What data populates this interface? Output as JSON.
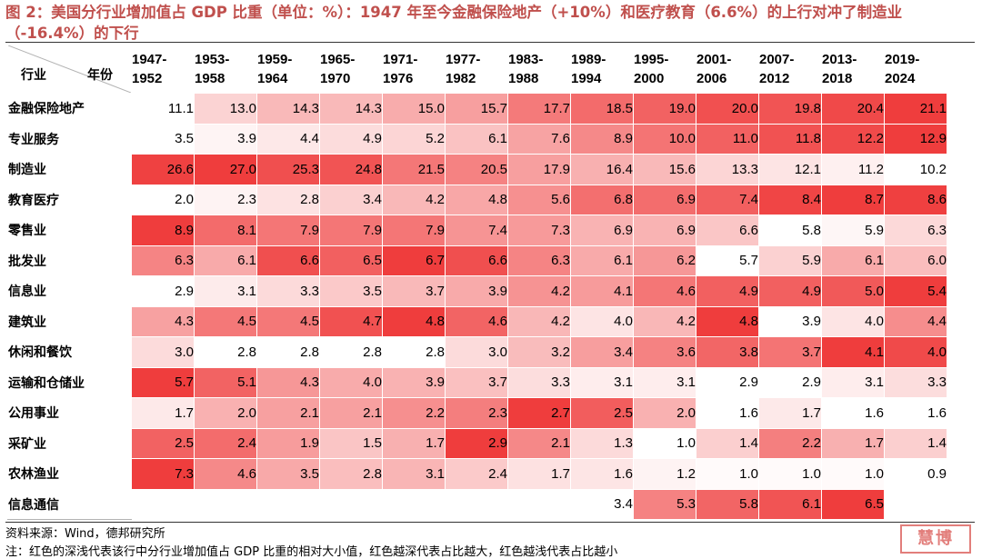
{
  "title": "图 2：美国分行业增加值占 GDP 比重（单位：%）：1947 年至今金融保险地产（+10%）和医疗教育（6.6%）的上行对冲了制造业（-16.4%）的下行",
  "corner": {
    "row_header": "行业",
    "col_header": "年份"
  },
  "colors": {
    "title": "#c0504d",
    "heat_max": "#ef3d3d",
    "heat_min": "#ffffff"
  },
  "chart_data": {
    "type": "heatmap",
    "title": "美国分行业增加值占 GDP 比重（单位：%）",
    "periods": [
      "1947-1952",
      "1953-1958",
      "1959-1964",
      "1965-1970",
      "1971-1976",
      "1977-1982",
      "1983-1988",
      "1989-1994",
      "1995-2000",
      "2001-2006",
      "2007-2012",
      "2013-2018",
      "2019-2024"
    ],
    "scale": "row-relative; deeper red = larger share",
    "rows": [
      {
        "name": "金融保险地产",
        "values": [
          11.1,
          13.0,
          14.3,
          14.3,
          15.0,
          15.7,
          17.7,
          18.5,
          19.0,
          20.0,
          19.8,
          20.4,
          21.1
        ]
      },
      {
        "name": "专业服务",
        "values": [
          3.5,
          3.9,
          4.4,
          4.9,
          5.2,
          6.1,
          7.6,
          8.9,
          10.0,
          11.0,
          11.8,
          12.2,
          12.9
        ]
      },
      {
        "name": "制造业",
        "values": [
          26.6,
          27.0,
          25.3,
          24.8,
          21.5,
          20.5,
          17.9,
          16.4,
          15.6,
          13.3,
          12.1,
          11.2,
          10.2
        ]
      },
      {
        "name": "教育医疗",
        "values": [
          2.0,
          2.3,
          2.8,
          3.4,
          4.2,
          4.8,
          5.6,
          6.8,
          6.9,
          7.4,
          8.4,
          8.7,
          8.6
        ]
      },
      {
        "name": "零售业",
        "values": [
          8.9,
          8.1,
          7.9,
          7.9,
          7.9,
          7.4,
          7.3,
          6.9,
          6.9,
          6.6,
          5.8,
          5.9,
          6.3
        ]
      },
      {
        "name": "批发业",
        "values": [
          6.3,
          6.1,
          6.6,
          6.5,
          6.7,
          6.6,
          6.3,
          6.1,
          6.2,
          5.7,
          5.9,
          6.1,
          6.0
        ]
      },
      {
        "name": "信息业",
        "values": [
          2.9,
          3.1,
          3.3,
          3.5,
          3.7,
          3.9,
          4.2,
          4.1,
          4.6,
          4.9,
          4.9,
          5.0,
          5.4
        ]
      },
      {
        "name": "建筑业",
        "values": [
          4.3,
          4.5,
          4.5,
          4.7,
          4.8,
          4.6,
          4.2,
          4.0,
          4.2,
          4.8,
          3.9,
          4.0,
          4.4
        ]
      },
      {
        "name": "休闲和餐饮",
        "values": [
          3.0,
          2.8,
          2.8,
          2.8,
          2.8,
          3.0,
          3.2,
          3.4,
          3.6,
          3.8,
          3.7,
          4.1,
          4.0
        ]
      },
      {
        "name": "运输和仓储业",
        "values": [
          5.7,
          5.1,
          4.3,
          4.0,
          3.9,
          3.7,
          3.3,
          3.1,
          3.1,
          2.9,
          2.9,
          3.1,
          3.3
        ]
      },
      {
        "name": "公用事业",
        "values": [
          1.7,
          2.0,
          2.1,
          2.1,
          2.2,
          2.3,
          2.7,
          2.5,
          2.0,
          1.6,
          1.7,
          1.6,
          1.6
        ]
      },
      {
        "name": "采矿业",
        "values": [
          2.5,
          2.4,
          1.9,
          1.5,
          1.7,
          2.9,
          2.1,
          1.3,
          1.0,
          1.4,
          2.2,
          1.7,
          1.4
        ]
      },
      {
        "name": "农林渔业",
        "values": [
          7.3,
          4.6,
          3.5,
          2.8,
          3.1,
          2.4,
          1.7,
          1.6,
          1.2,
          1.0,
          1.0,
          1.0,
          0.9
        ]
      },
      {
        "name": "信息通信",
        "values": [
          null,
          null,
          null,
          null,
          null,
          null,
          null,
          3.4,
          5.3,
          5.8,
          6.1,
          6.5,
          null
        ]
      }
    ]
  },
  "source": "资料来源：Wind，德邦研究所",
  "note": "注：红色的深浅代表该行中分行业增加值占 GDP 比重的相对大小值，红色越深代表占比越大，红色越浅代表占比越小",
  "watermark": "慧博"
}
